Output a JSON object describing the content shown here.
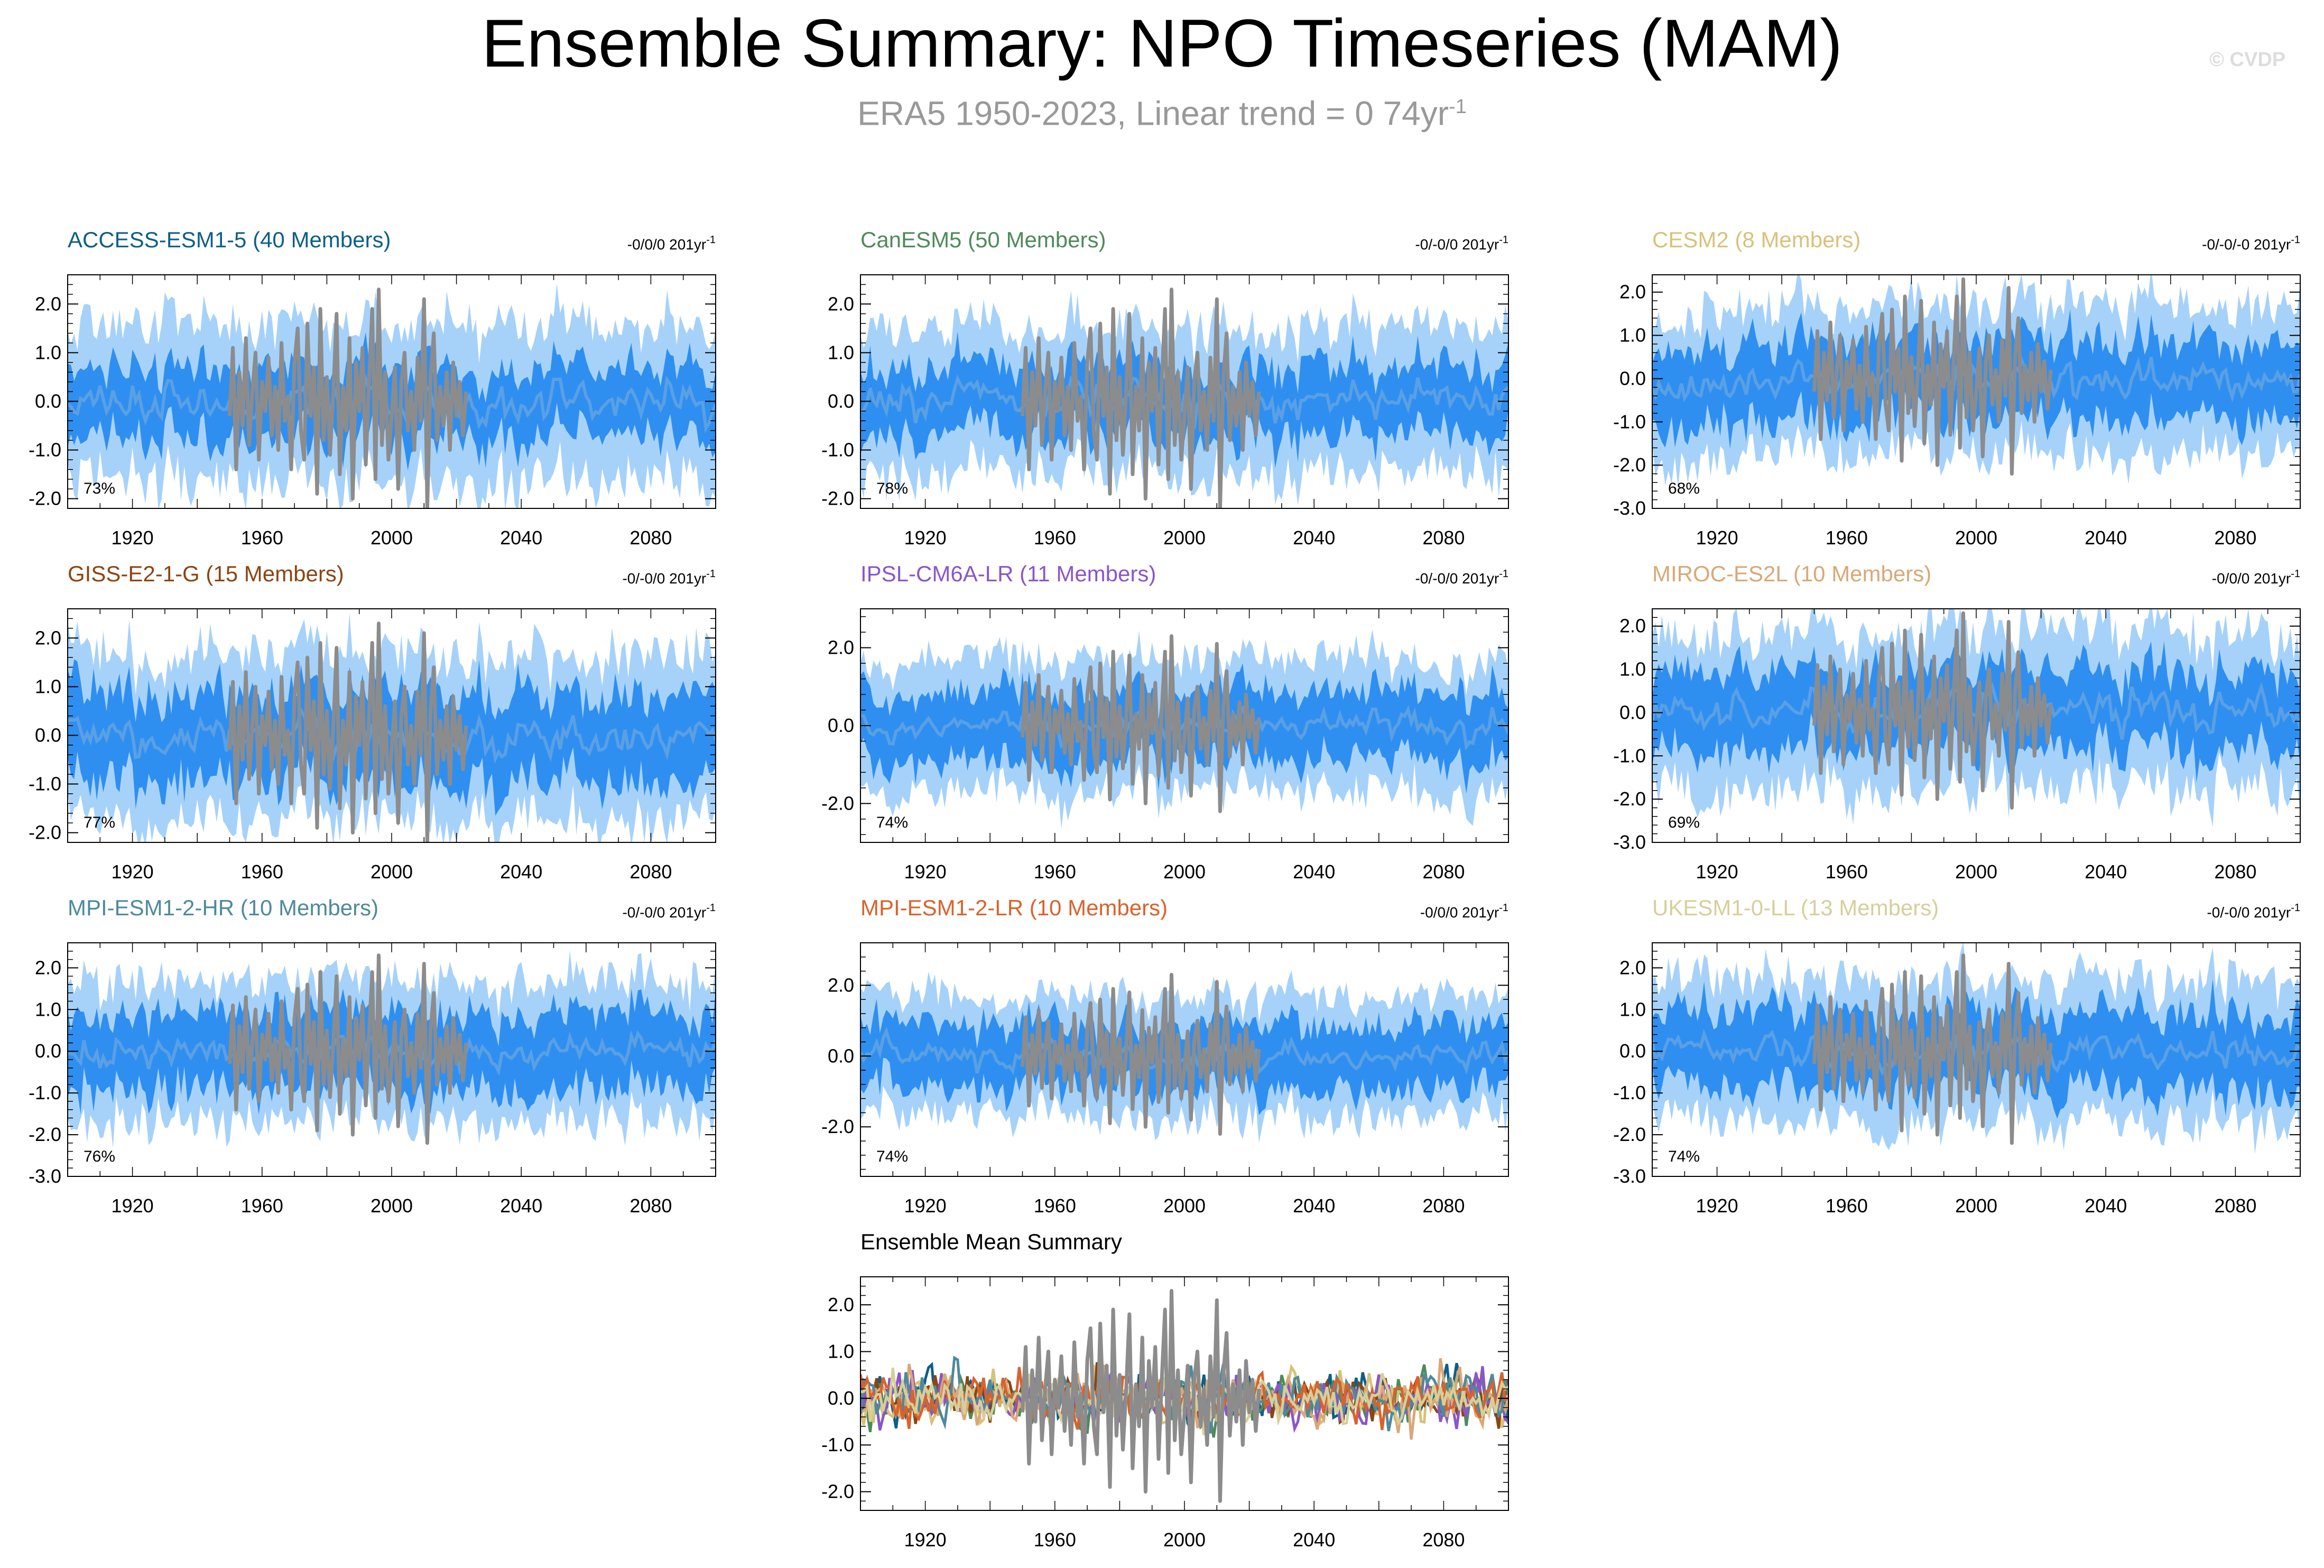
{
  "title": "Ensemble Summary: NPO Timeseries (MAM)",
  "subtitle": {
    "text": "ERA5 1950-2023, Linear trend = 0 74yr",
    "sup": "-1"
  },
  "watermark": "© CVDP",
  "colors": {
    "band_outer": "#a6d2fa",
    "band_inner": "#2f8ff0",
    "ens_mean": "#5aa0e4",
    "obs": "#8c8c8c",
    "frame": "#000000"
  },
  "chart_data": [
    {
      "type": "area",
      "title": "ACCESS-ESM1-5 (40 Members)",
      "title_color": "#0e5f87",
      "trend": "-0/0/0 201yr",
      "trend_sup": "-1",
      "percent": "73%",
      "ylim": [
        -2.2,
        2.6
      ],
      "yticks": [
        "-2.0",
        "-1.0",
        "0.0",
        "1.0",
        "2.0"
      ],
      "ytick_values": [
        -2,
        -1,
        0,
        1,
        2
      ],
      "xlim": [
        1900,
        2100
      ],
      "xticks": [
        "1920",
        "1960",
        "2000",
        "2040",
        "2080"
      ],
      "xtick_values": [
        1920,
        1960,
        2000,
        2040,
        2080
      ],
      "outer_spread": 1.6,
      "inner_spread": 0.7,
      "seed": 11
    },
    {
      "type": "area",
      "title": "CanESM5 (50 Members)",
      "title_color": "#4f8a5a",
      "trend": "-0/-0/0 201yr",
      "trend_sup": "-1",
      "percent": "78%",
      "ylim": [
        -2.2,
        2.6
      ],
      "yticks": [
        "-2.0",
        "-1.0",
        "0.0",
        "1.0",
        "2.0"
      ],
      "ytick_values": [
        -2,
        -1,
        0,
        1,
        2
      ],
      "xlim": [
        1900,
        2100
      ],
      "xticks": [
        "1920",
        "1960",
        "2000",
        "2040",
        "2080"
      ],
      "xtick_values": [
        1920,
        1960,
        2000,
        2040,
        2080
      ],
      "outer_spread": 1.5,
      "inner_spread": 0.7,
      "seed": 23
    },
    {
      "type": "area",
      "title": "CESM2 (8 Members)",
      "title_color": "#d8c27a",
      "trend": "-0/-0/-0 201yr",
      "trend_sup": "-1",
      "percent": "68%",
      "ylim": [
        -3.0,
        2.4
      ],
      "yticks": [
        "-3.0",
        "-2.0",
        "-1.0",
        "0.0",
        "1.0",
        "2.0"
      ],
      "ytick_values": [
        -3,
        -2,
        -1,
        0,
        1,
        2
      ],
      "xlim": [
        1900,
        2100
      ],
      "xticks": [
        "1920",
        "1960",
        "2000",
        "2040",
        "2080"
      ],
      "xtick_values": [
        1920,
        1960,
        2000,
        2040,
        2080
      ],
      "outer_spread": 1.7,
      "inner_spread": 0.9,
      "seed": 37
    },
    {
      "type": "area",
      "title": "GISS-E2-1-G (15 Members)",
      "title_color": "#8b4513",
      "trend": "-0/-0/0 201yr",
      "trend_sup": "-1",
      "percent": "77%",
      "ylim": [
        -2.2,
        2.6
      ],
      "yticks": [
        "-2.0",
        "-1.0",
        "0.0",
        "1.0",
        "2.0"
      ],
      "ytick_values": [
        -2,
        -1,
        0,
        1,
        2
      ],
      "xlim": [
        1900,
        2100
      ],
      "xticks": [
        "1920",
        "1960",
        "2000",
        "2040",
        "2080"
      ],
      "xtick_values": [
        1920,
        1960,
        2000,
        2040,
        2080
      ],
      "outer_spread": 1.7,
      "inner_spread": 0.9,
      "seed": 41
    },
    {
      "type": "area",
      "title": "IPSL-CM6A-LR (11 Members)",
      "title_color": "#8a56c8",
      "trend": "-0/-0/0 201yr",
      "trend_sup": "-1",
      "percent": "74%",
      "ylim": [
        -3.0,
        3.0
      ],
      "yticks": [
        "-2.0",
        "0.0",
        "2.0"
      ],
      "ytick_values": [
        -2,
        0,
        2
      ],
      "xlim": [
        1900,
        2100
      ],
      "xticks": [
        "1920",
        "1960",
        "2000",
        "2040",
        "2080"
      ],
      "xtick_values": [
        1920,
        1960,
        2000,
        2040,
        2080
      ],
      "outer_spread": 1.7,
      "inner_spread": 0.9,
      "seed": 53
    },
    {
      "type": "area",
      "title": "MIROC-ES2L (10 Members)",
      "title_color": "#d9a877",
      "trend": "-0/0/0 201yr",
      "trend_sup": "-1",
      "percent": "69%",
      "ylim": [
        -3.0,
        2.4
      ],
      "yticks": [
        "-3.0",
        "-2.0",
        "-1.0",
        "0.0",
        "1.0",
        "2.0"
      ],
      "ytick_values": [
        -3,
        -2,
        -1,
        0,
        1,
        2
      ],
      "xlim": [
        1900,
        2100
      ],
      "xticks": [
        "1920",
        "1960",
        "2000",
        "2040",
        "2080"
      ],
      "xtick_values": [
        1920,
        1960,
        2000,
        2040,
        2080
      ],
      "outer_spread": 1.8,
      "inner_spread": 0.9,
      "seed": 67
    },
    {
      "type": "area",
      "title": "MPI-ESM1-2-HR (10 Members)",
      "title_color": "#4d8a9c",
      "trend": "-0/-0/0 201yr",
      "trend_sup": "-1",
      "percent": "76%",
      "ylim": [
        -3.0,
        2.6
      ],
      "yticks": [
        "-3.0",
        "-2.0",
        "-1.0",
        "0.0",
        "1.0",
        "2.0"
      ],
      "ytick_values": [
        -3,
        -2,
        -1,
        0,
        1,
        2
      ],
      "xlim": [
        1900,
        2100
      ],
      "xticks": [
        "1920",
        "1960",
        "2000",
        "2040",
        "2080"
      ],
      "xtick_values": [
        1920,
        1960,
        2000,
        2040,
        2080
      ],
      "outer_spread": 1.7,
      "inner_spread": 0.9,
      "seed": 71
    },
    {
      "type": "area",
      "title": "MPI-ESM1-2-LR (10 Members)",
      "title_color": "#d9622b",
      "trend": "-0/0/0 201yr",
      "trend_sup": "-1",
      "percent": "74%",
      "ylim": [
        -3.4,
        3.2
      ],
      "yticks": [
        "-2.0",
        "0.0",
        "2.0"
      ],
      "ytick_values": [
        -2,
        0,
        2
      ],
      "xlim": [
        1900,
        2100
      ],
      "xticks": [
        "1920",
        "1960",
        "2000",
        "2040",
        "2080"
      ],
      "xtick_values": [
        1920,
        1960,
        2000,
        2040,
        2080
      ],
      "outer_spread": 1.7,
      "inner_spread": 0.9,
      "seed": 83
    },
    {
      "type": "area",
      "title": "UKESM1-0-LL (13 Members)",
      "title_color": "#d7cf9a",
      "trend": "-0/-0/0 201yr",
      "trend_sup": "-1",
      "percent": "74%",
      "ylim": [
        -3.0,
        2.6
      ],
      "yticks": [
        "-3.0",
        "-2.0",
        "-1.0",
        "0.0",
        "1.0",
        "2.0"
      ],
      "ytick_values": [
        -3,
        -2,
        -1,
        0,
        1,
        2
      ],
      "xlim": [
        1900,
        2100
      ],
      "xticks": [
        "1920",
        "1960",
        "2000",
        "2040",
        "2080"
      ],
      "xtick_values": [
        1920,
        1960,
        2000,
        2040,
        2080
      ],
      "outer_spread": 1.7,
      "inner_spread": 0.9,
      "seed": 97
    },
    {
      "type": "line",
      "title": "Ensemble Mean Summary",
      "title_color": "#000000",
      "trend": "",
      "trend_sup": "",
      "percent": "",
      "ylim": [
        -2.4,
        2.6
      ],
      "yticks": [
        "-2.0",
        "-1.0",
        "0.0",
        "1.0",
        "2.0"
      ],
      "ytick_values": [
        -2,
        -1,
        0,
        1,
        2
      ],
      "xlim": [
        1900,
        2100
      ],
      "xticks": [
        "1920",
        "1960",
        "2000",
        "2040",
        "2080"
      ],
      "xtick_values": [
        1920,
        1960,
        2000,
        2040,
        2080
      ],
      "series_colors": [
        "#0e5f87",
        "#4f8a5a",
        "#d8c27a",
        "#8b4513",
        "#8a56c8",
        "#d9a877",
        "#4d8a9c",
        "#d9622b",
        "#d7cf9a"
      ],
      "seed": 101
    }
  ],
  "observation": {
    "name": "ERA5",
    "years": [
      1950,
      1951,
      1952,
      1953,
      1954,
      1955,
      1956,
      1957,
      1958,
      1959,
      1960,
      1961,
      1962,
      1963,
      1964,
      1965,
      1966,
      1967,
      1968,
      1969,
      1970,
      1971,
      1972,
      1973,
      1974,
      1975,
      1976,
      1977,
      1978,
      1979,
      1980,
      1981,
      1982,
      1983,
      1984,
      1985,
      1986,
      1987,
      1988,
      1989,
      1990,
      1991,
      1992,
      1993,
      1994,
      1995,
      1996,
      1997,
      1998,
      1999,
      2000,
      2001,
      2002,
      2003,
      2004,
      2005,
      2006,
      2007,
      2008,
      2009,
      2010,
      2011,
      2012,
      2013,
      2014,
      2015,
      2016,
      2017,
      2018,
      2019,
      2020,
      2021,
      2022,
      2023
    ],
    "values": [
      -0.3,
      1.1,
      -1.4,
      0.6,
      -0.5,
      1.3,
      -0.9,
      0.2,
      1.0,
      -1.2,
      0.4,
      -0.2,
      0.9,
      -0.7,
      0.3,
      -1.0,
      1.2,
      -0.4,
      0.1,
      -1.4,
      0.8,
      1.5,
      -0.6,
      -1.2,
      1.6,
      -0.3,
      0.7,
      -1.9,
      1.9,
      -0.8,
      0.5,
      -1.1,
      0.2,
      1.8,
      -1.5,
      0.3,
      -0.6,
      1.3,
      -2.0,
      0.8,
      -0.2,
      1.1,
      -1.3,
      0.4,
      1.9,
      -1.6,
      2.3,
      -0.9,
      0.6,
      -1.2,
      -0.3,
      0.7,
      -1.8,
      0.4,
      1.0,
      -0.6,
      0.2,
      -1.0,
      0.9,
      -0.4,
      2.1,
      -2.2,
      0.5,
      1.4,
      -0.8,
      0.3,
      -0.5,
      0.6,
      -1.0,
      0.8,
      -0.3,
      0.4,
      -0.7,
      0.2
    ]
  }
}
